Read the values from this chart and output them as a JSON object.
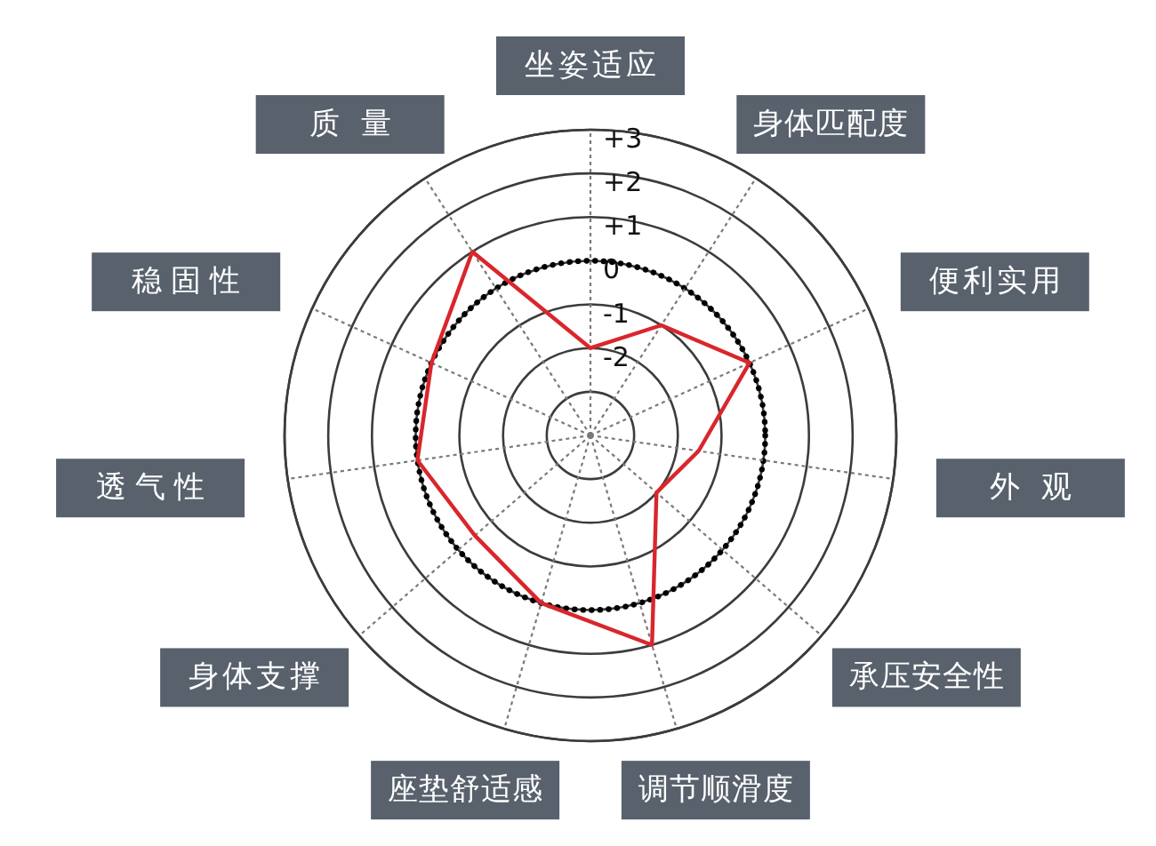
{
  "chart_data": {
    "type": "radar",
    "categories": [
      "坐姿适应",
      "身体匹配度",
      "便利实用",
      "外观",
      "承压安全性",
      "调节顺滑度",
      "座垫舒适感",
      "身体支撑",
      "透气性",
      "稳固性",
      "质量"
    ],
    "series": [
      {
        "color": "#d9262c",
        "values": [
          -2,
          -1,
          0,
          -1.5,
          -2,
          1,
          0,
          -0.5,
          0,
          0,
          1
        ]
      }
    ],
    "ylim": [
      -4,
      3
    ],
    "yticks": [
      -2,
      -1,
      0,
      {
        "value": 1,
        "label": "+1"
      },
      {
        "value": 2,
        "label": "+2"
      },
      {
        "value": 3,
        "label": "+3"
      }
    ],
    "grid": true
  }
}
